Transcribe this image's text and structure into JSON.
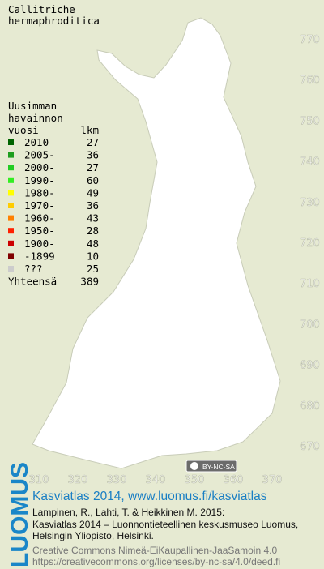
{
  "title": [
    "Callitriche",
    "hermaphroditica"
  ],
  "legend": {
    "title": [
      "Uusimman",
      "havainnon",
      "vuosi"
    ],
    "count_header": "lkm",
    "items": [
      {
        "label": "2010-",
        "count": 27,
        "color": "#006400"
      },
      {
        "label": "2005-",
        "count": 36,
        "color": "#1e9e1e"
      },
      {
        "label": "2000-",
        "count": 27,
        "color": "#22cc22"
      },
      {
        "label": "1990-",
        "count": 60,
        "color": "#33ee22"
      },
      {
        "label": "1980-",
        "count": 49,
        "color": "#ffff00"
      },
      {
        "label": "1970-",
        "count": 36,
        "color": "#ffcc00"
      },
      {
        "label": "1960-",
        "count": 43,
        "color": "#ff8000"
      },
      {
        "label": "1950-",
        "count": 28,
        "color": "#ff2000"
      },
      {
        "label": "1900-",
        "count": 48,
        "color": "#cc0000"
      },
      {
        "label": "-1899",
        "count": 10,
        "color": "#800000"
      },
      {
        "label": "???",
        "count": 25,
        "color": "#cccccc"
      }
    ],
    "total": {
      "label": "Yhteensä",
      "count": 389
    }
  },
  "map": {
    "xticks": [
      310,
      320,
      330,
      340,
      350,
      360,
      370
    ],
    "yticks": [
      670,
      680,
      690,
      700,
      710,
      720,
      730,
      740,
      750,
      760,
      770
    ]
  },
  "badge": "BY-NC-SA",
  "footer": {
    "logo": "LUOMUS",
    "link": "Kasviatlas 2014, www.luomus.fi/kasviatlas",
    "citation": [
      "Lampinen, R., Lahti, T. & Heikkinen M. 2015:",
      "Kasviatlas 2014 – Luonnontieteellinen keskusmuseo Luomus,",
      "Helsingin Yliopisto, Helsinki."
    ],
    "license": [
      "Creative Commons Nimeä-EiKaupallinen-JaaSamoin 4.0",
      "https://creativecommons.org/licenses/by-nc-sa/4.0/deed.fi"
    ]
  }
}
